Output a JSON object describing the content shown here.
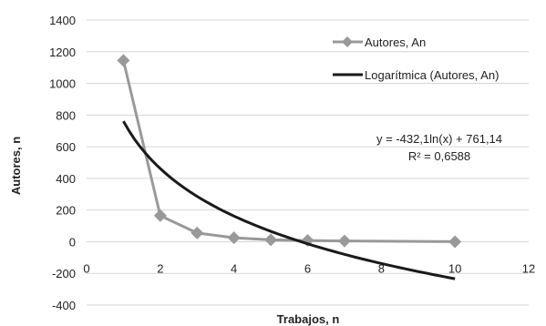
{
  "chart_data": {
    "type": "scatter",
    "xlabel": "Trabajos, n",
    "ylabel": "Autores, n",
    "xlim": [
      0,
      12
    ],
    "ylim": [
      -400,
      1400
    ],
    "x_ticks": [
      0,
      2,
      4,
      6,
      8,
      10,
      12
    ],
    "y_ticks": [
      -400,
      -200,
      0,
      200,
      400,
      600,
      800,
      1000,
      1200,
      1400
    ],
    "grid": "horizontal",
    "legend_position": "top-right",
    "series": [
      {
        "name": "Autores, An",
        "color": "#999999",
        "marker": "diamond",
        "x": [
          1,
          2,
          3,
          4,
          5,
          6,
          7,
          10
        ],
        "y": [
          1145,
          165,
          55,
          25,
          12,
          8,
          5,
          0
        ]
      },
      {
        "name": "Logarítmica (Autores, An)",
        "color": "#1a1a1a",
        "type": "trendline",
        "function": "logarithmic",
        "coef_a": -432.1,
        "coef_b": 761.14,
        "x_range": [
          1,
          10
        ]
      }
    ],
    "annotations": {
      "equation": "y = -432,1ln(x) + 761,14",
      "r_squared": "R² = 0,6588"
    }
  }
}
